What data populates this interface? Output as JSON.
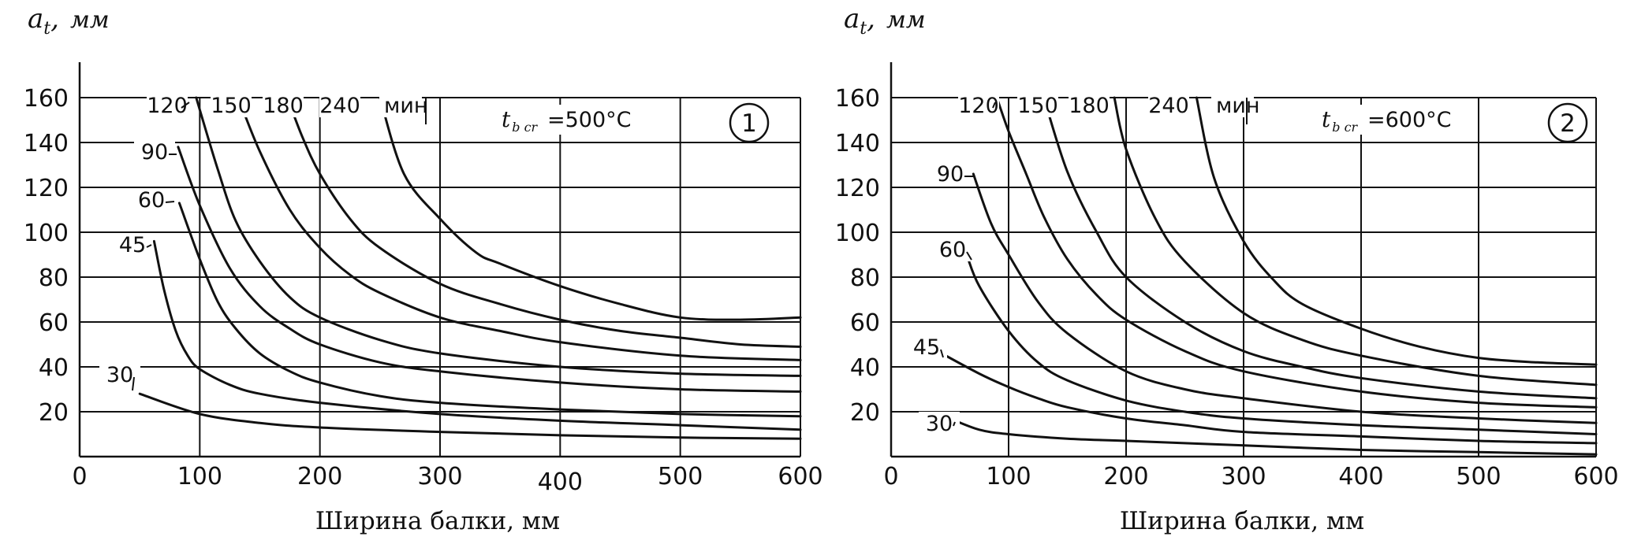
{
  "chart_data": [
    {
      "type": "line",
      "panel_number": "1",
      "ylabel_var": "a",
      "ylabel_sub": "t",
      "ylabel_sep": ",",
      "ylabel_unit": "мм",
      "xlabel": "Ширина балки, мм",
      "xlim": [
        0,
        600
      ],
      "ylim": [
        0,
        160
      ],
      "xticks": [
        0,
        100,
        200,
        300,
        400,
        500,
        600
      ],
      "yticks": [
        20,
        40,
        60,
        80,
        100,
        120,
        140,
        160
      ],
      "grid": true,
      "temp_symbol": "t",
      "temp_sub": "b cr",
      "temp_value": "=500°C",
      "unit_label": "мин",
      "series": [
        {
          "name": "30",
          "x": [
            50,
            100,
            150,
            200,
            300,
            400,
            500,
            600
          ],
          "y": [
            28,
            19,
            15,
            13,
            11,
            9.5,
            8.5,
            8
          ]
        },
        {
          "name": "45",
          "x": [
            62,
            70,
            80,
            90,
            100,
            125,
            150,
            200,
            300,
            400,
            500,
            600
          ],
          "y": [
            96,
            75,
            56,
            45,
            39,
            32,
            28,
            24,
            19,
            16,
            14,
            12
          ]
        },
        {
          "name": "60",
          "x": [
            83,
            100,
            115,
            130,
            150,
            175,
            200,
            250,
            300,
            400,
            500,
            600
          ],
          "y": [
            113,
            88,
            69,
            57,
            46,
            38,
            33,
            27,
            24,
            21,
            19,
            18
          ]
        },
        {
          "name": "90",
          "x": [
            82,
            100,
            125,
            150,
            175,
            200,
            250,
            300,
            400,
            500,
            600
          ],
          "y": [
            138,
            112,
            84,
            67,
            57,
            50,
            42,
            38,
            33,
            30,
            29
          ]
        },
        {
          "name": "120",
          "x": [
            97,
            115,
            130,
            150,
            175,
            200,
            250,
            300,
            400,
            500,
            600
          ],
          "y": [
            160,
            128,
            105,
            87,
            71,
            62,
            52,
            46,
            40,
            37,
            36
          ]
        },
        {
          "name": "150",
          "x": [
            132,
            150,
            175,
            200,
            225,
            250,
            300,
            350,
            400,
            500,
            600
          ],
          "y": [
            160,
            136,
            110,
            93,
            81,
            73,
            62,
            56,
            51,
            45,
            43
          ]
        },
        {
          "name": "180",
          "x": [
            173,
            185,
            200,
            225,
            250,
            300,
            350,
            400,
            450,
            500,
            550,
            600
          ],
          "y": [
            160,
            143,
            126,
            106,
            93,
            77,
            68,
            61,
            56,
            53,
            50,
            49
          ]
        },
        {
          "name": "240",
          "x": [
            250,
            270,
            300,
            330,
            350,
            400,
            450,
            500,
            550,
            600
          ],
          "y": [
            160,
            126,
            106,
            91,
            86,
            76,
            68,
            62,
            61,
            62
          ]
        }
      ]
    },
    {
      "type": "line",
      "panel_number": "2",
      "ylabel_var": "a",
      "ylabel_sub": "t",
      "ylabel_sep": ",",
      "ylabel_unit": "мм",
      "xlabel": "Ширина балки, мм",
      "xlim": [
        0,
        600
      ],
      "ylim": [
        0,
        160
      ],
      "xticks": [
        0,
        100,
        200,
        300,
        400,
        500,
        600
      ],
      "yticks": [
        20,
        40,
        60,
        80,
        100,
        120,
        140,
        160
      ],
      "grid": true,
      "temp_symbol": "t",
      "temp_sub": "b cr",
      "temp_value": "=600°C",
      "unit_label": "мин",
      "series": [
        {
          "name": "30",
          "x": [
            50,
            75,
            100,
            150,
            200,
            300,
            400,
            500,
            600
          ],
          "y": [
            17,
            12,
            10,
            8,
            7,
            5,
            3,
            2,
            1
          ]
        },
        {
          "name": "45",
          "x": [
            43,
            75,
            100,
            125,
            150,
            200,
            250,
            300,
            400,
            500,
            600
          ],
          "y": [
            46,
            37,
            31,
            26,
            22,
            17,
            14,
            11,
            9,
            7,
            6
          ]
        },
        {
          "name": "60",
          "x": [
            65,
            75,
            100,
            125,
            150,
            200,
            250,
            300,
            400,
            500,
            600
          ],
          "y": [
            89,
            76,
            56,
            42,
            34,
            25,
            20,
            17,
            14,
            12,
            10
          ]
        },
        {
          "name": "90",
          "x": [
            70,
            85,
            100,
            125,
            150,
            200,
            250,
            300,
            400,
            500,
            600
          ],
          "y": [
            126,
            104,
            90,
            69,
            55,
            38,
            30,
            26,
            20,
            17,
            15
          ]
        },
        {
          "name": "120",
          "x": [
            90,
            100,
            115,
            130,
            150,
            175,
            200,
            250,
            300,
            400,
            500,
            600
          ],
          "y": [
            160,
            145,
            126,
            107,
            88,
            72,
            61,
            47,
            38,
            29,
            24,
            22
          ]
        },
        {
          "name": "150",
          "x": [
            130,
            150,
            175,
            200,
            250,
            300,
            350,
            400,
            500,
            600
          ],
          "y": [
            160,
            127,
            100,
            80,
            60,
            47,
            40,
            35,
            29,
            26
          ]
        },
        {
          "name": "180",
          "x": [
            190,
            200,
            225,
            250,
            300,
            350,
            400,
            500,
            600
          ],
          "y": [
            160,
            137,
            106,
            87,
            64,
            52,
            45,
            36,
            32
          ]
        },
        {
          "name": "240",
          "x": [
            260,
            275,
            300,
            325,
            350,
            400,
            450,
            500,
            550,
            600
          ],
          "y": [
            160,
            124,
            96,
            79,
            68,
            57,
            49,
            44,
            42,
            41
          ]
        }
      ]
    }
  ]
}
